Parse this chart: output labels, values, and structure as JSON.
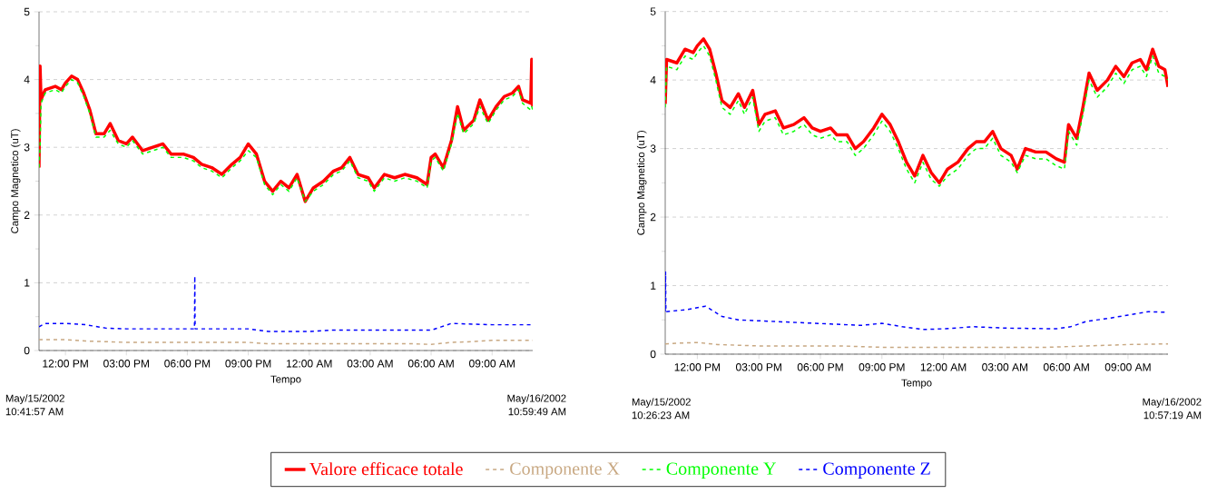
{
  "chart_data": [
    {
      "type": "line",
      "xlabel": "Tempo",
      "ylabel": "Campo Magnetico  (uT)",
      "annotations": [
        "May/15/2002",
        "10:41:57 AM",
        "May/16/2002",
        "10:59:49 AM"
      ],
      "xlim": [
        "2002-05-15T10:42",
        "2002-05-16T11:00"
      ],
      "ylim": [
        0,
        5
      ],
      "xticks": [
        {
          "value": "2002-05-15T12:00",
          "label": "12:00 PM"
        },
        {
          "value": "2002-05-15T15:00",
          "label": "03:00 PM"
        },
        {
          "value": "2002-05-15T18:00",
          "label": "06:00 PM"
        },
        {
          "value": "2002-05-15T21:00",
          "label": "09:00 PM"
        },
        {
          "value": "2002-05-16T00:00",
          "label": "12:00 AM"
        },
        {
          "value": "2002-05-16T03:00",
          "label": "03:00 AM"
        },
        {
          "value": "2002-05-16T06:00",
          "label": "06:00 AM"
        },
        {
          "value": "2002-05-16T09:00",
          "label": "09:00 AM"
        }
      ],
      "yticks": [
        0,
        1,
        2,
        3,
        4,
        5
      ],
      "grid": "y",
      "legend": "bottom",
      "marker": "none",
      "x": [
        "2002-05-15T10:42",
        "2002-05-15T10:45",
        "2002-05-15T10:48",
        "2002-05-15T11:00",
        "2002-05-15T11:30",
        "2002-05-15T11:48",
        "2002-05-15T12:00",
        "2002-05-15T12:18",
        "2002-05-15T12:36",
        "2002-05-15T12:54",
        "2002-05-15T13:12",
        "2002-05-15T13:30",
        "2002-05-15T13:54",
        "2002-05-15T14:12",
        "2002-05-15T14:36",
        "2002-05-15T15:00",
        "2002-05-15T15:18",
        "2002-05-15T15:48",
        "2002-05-15T16:18",
        "2002-05-15T16:48",
        "2002-05-15T17:12",
        "2002-05-15T17:48",
        "2002-05-15T18:18",
        "2002-05-15T18:42",
        "2002-05-15T19:12",
        "2002-05-15T19:42",
        "2002-05-15T20:12",
        "2002-05-15T20:36",
        "2002-05-15T21:00",
        "2002-05-15T21:24",
        "2002-05-15T21:48",
        "2002-05-15T22:12",
        "2002-05-15T22:36",
        "2002-05-15T23:00",
        "2002-05-15T23:24",
        "2002-05-15T23:48",
        "2002-05-16T00:12",
        "2002-05-16T00:42",
        "2002-05-16T01:12",
        "2002-05-16T01:36",
        "2002-05-16T02:00",
        "2002-05-16T02:24",
        "2002-05-16T02:54",
        "2002-05-16T03:12",
        "2002-05-16T03:42",
        "2002-05-16T04:12",
        "2002-05-16T04:42",
        "2002-05-16T05:18",
        "2002-05-16T05:48",
        "2002-05-16T06:00",
        "2002-05-16T06:12",
        "2002-05-16T06:36",
        "2002-05-16T07:00",
        "2002-05-16T07:18",
        "2002-05-16T07:36",
        "2002-05-16T08:06",
        "2002-05-16T08:24",
        "2002-05-16T08:48",
        "2002-05-16T09:12",
        "2002-05-16T09:36",
        "2002-05-16T10:00",
        "2002-05-16T10:18",
        "2002-05-16T10:30",
        "2002-05-16T10:54",
        "2002-05-16T10:57",
        "2002-05-16T11:00"
      ],
      "series": [
        {
          "name": "Valore efficace totale",
          "color": "#ff0000",
          "line_style": "solid",
          "values": [
            2.7,
            4.2,
            3.7,
            3.85,
            3.9,
            3.85,
            3.95,
            4.05,
            4.0,
            3.8,
            3.55,
            3.2,
            3.2,
            3.35,
            3.1,
            3.05,
            3.15,
            2.95,
            3.0,
            3.05,
            2.9,
            2.9,
            2.85,
            2.75,
            2.7,
            2.6,
            2.75,
            2.85,
            3.05,
            2.9,
            2.5,
            2.35,
            2.5,
            2.4,
            2.6,
            2.2,
            2.4,
            2.5,
            2.65,
            2.7,
            2.85,
            2.6,
            2.55,
            2.4,
            2.6,
            2.55,
            2.6,
            2.55,
            2.45,
            2.85,
            2.9,
            2.7,
            3.1,
            3.6,
            3.25,
            3.4,
            3.7,
            3.4,
            3.6,
            3.75,
            3.8,
            3.9,
            3.7,
            3.65,
            4.3,
            3.6
          ]
        },
        {
          "name": "Componente X",
          "color": "#c8a882",
          "line_style": "dashed",
          "x": [
            "2002-05-15T10:42",
            "2002-05-15T12:00",
            "2002-05-15T13:00",
            "2002-05-15T15:00",
            "2002-05-15T18:00",
            "2002-05-15T21:00",
            "2002-05-15T22:00",
            "2002-05-16T01:00",
            "2002-05-16T05:00",
            "2002-05-16T06:00",
            "2002-05-16T07:00",
            "2002-05-16T08:00",
            "2002-05-16T09:00",
            "2002-05-16T11:00"
          ],
          "values": [
            0.16,
            0.16,
            0.14,
            0.12,
            0.12,
            0.12,
            0.1,
            0.1,
            0.1,
            0.09,
            0.12,
            0.13,
            0.15,
            0.15
          ]
        },
        {
          "name": "Componente Y",
          "color": "#00ff00",
          "line_style": "dashed",
          "values": [
            2.7,
            3.0,
            3.65,
            3.8,
            3.85,
            3.8,
            3.9,
            4.0,
            3.95,
            3.75,
            3.5,
            3.15,
            3.15,
            3.25,
            3.05,
            3.0,
            3.1,
            2.9,
            2.95,
            3.0,
            2.85,
            2.85,
            2.8,
            2.7,
            2.65,
            2.55,
            2.7,
            2.8,
            2.95,
            2.85,
            2.45,
            2.3,
            2.45,
            2.35,
            2.55,
            2.2,
            2.35,
            2.45,
            2.6,
            2.65,
            2.8,
            2.55,
            2.5,
            2.35,
            2.55,
            2.5,
            2.55,
            2.5,
            2.4,
            2.8,
            2.85,
            2.65,
            3.05,
            3.5,
            3.2,
            3.35,
            3.6,
            3.35,
            3.55,
            3.7,
            3.75,
            3.85,
            3.65,
            3.55,
            3.6,
            3.55
          ]
        },
        {
          "name": "Componente Z",
          "color": "#0000ff",
          "line_style": "dashed",
          "x": [
            "2002-05-15T10:42",
            "2002-05-15T11:00",
            "2002-05-15T12:00",
            "2002-05-15T13:00",
            "2002-05-15T14:00",
            "2002-05-15T15:00",
            "2002-05-15T18:00",
            "2002-05-15T18:21",
            "2002-05-15T18:22",
            "2002-05-15T18:23",
            "2002-05-15T21:00",
            "2002-05-15T22:00",
            "2002-05-16T00:00",
            "2002-05-16T01:00",
            "2002-05-16T06:00",
            "2002-05-16T06:30",
            "2002-05-16T07:00",
            "2002-05-16T09:00",
            "2002-05-16T11:00"
          ],
          "values": [
            0.35,
            0.4,
            0.4,
            0.38,
            0.33,
            0.32,
            0.32,
            0.32,
            1.1,
            0.32,
            0.32,
            0.28,
            0.28,
            0.3,
            0.3,
            0.35,
            0.4,
            0.38,
            0.38
          ]
        }
      ]
    },
    {
      "type": "line",
      "xlabel": "Tempo",
      "ylabel": "Campo Magnetico  (uT)",
      "annotations": [
        "May/15/2002",
        "10:26:23 AM",
        "May/16/2002",
        "10:57:19 AM"
      ],
      "xlim": [
        "2002-05-15T10:26",
        "2002-05-16T10:57"
      ],
      "ylim": [
        0,
        5
      ],
      "xticks": [
        {
          "value": "2002-05-15T12:00",
          "label": "12:00 PM"
        },
        {
          "value": "2002-05-15T15:00",
          "label": "03:00 PM"
        },
        {
          "value": "2002-05-15T18:00",
          "label": "06:00 PM"
        },
        {
          "value": "2002-05-15T21:00",
          "label": "09:00 PM"
        },
        {
          "value": "2002-05-16T00:00",
          "label": "12:00 AM"
        },
        {
          "value": "2002-05-16T03:00",
          "label": "03:00 AM"
        },
        {
          "value": "2002-05-16T06:00",
          "label": "06:00 AM"
        },
        {
          "value": "2002-05-16T09:00",
          "label": "09:00 AM"
        }
      ],
      "yticks": [
        0,
        1,
        2,
        3,
        4,
        5
      ],
      "grid": "y",
      "marker": "none",
      "x": [
        "2002-05-15T10:26",
        "2002-05-15T10:30",
        "2002-05-15T11:00",
        "2002-05-15T11:24",
        "2002-05-15T11:48",
        "2002-05-15T12:00",
        "2002-05-15T12:18",
        "2002-05-15T12:36",
        "2002-05-15T12:54",
        "2002-05-15T13:12",
        "2002-05-15T13:36",
        "2002-05-15T14:00",
        "2002-05-15T14:18",
        "2002-05-15T14:42",
        "2002-05-15T15:00",
        "2002-05-15T15:18",
        "2002-05-15T15:48",
        "2002-05-15T16:12",
        "2002-05-15T16:42",
        "2002-05-15T17:12",
        "2002-05-15T17:36",
        "2002-05-15T18:00",
        "2002-05-15T18:30",
        "2002-05-15T18:48",
        "2002-05-15T19:18",
        "2002-05-15T19:42",
        "2002-05-15T20:06",
        "2002-05-15T20:36",
        "2002-05-15T21:00",
        "2002-05-15T21:24",
        "2002-05-15T21:48",
        "2002-05-15T22:12",
        "2002-05-15T22:36",
        "2002-05-15T23:00",
        "2002-05-15T23:24",
        "2002-05-15T23:48",
        "2002-05-16T00:12",
        "2002-05-16T00:42",
        "2002-05-16T01:12",
        "2002-05-16T01:36",
        "2002-05-16T02:00",
        "2002-05-16T02:24",
        "2002-05-16T02:48",
        "2002-05-16T03:18",
        "2002-05-16T03:36",
        "2002-05-16T04:00",
        "2002-05-16T04:30",
        "2002-05-16T05:00",
        "2002-05-16T05:30",
        "2002-05-16T05:54",
        "2002-05-16T06:06",
        "2002-05-16T06:30",
        "2002-05-16T06:48",
        "2002-05-16T07:06",
        "2002-05-16T07:30",
        "2002-05-16T08:00",
        "2002-05-16T08:24",
        "2002-05-16T08:48",
        "2002-05-16T09:12",
        "2002-05-16T09:36",
        "2002-05-16T09:54",
        "2002-05-16T10:12",
        "2002-05-16T10:30",
        "2002-05-16T10:48",
        "2002-05-16T10:57"
      ],
      "series": [
        {
          "color": "#ff0000",
          "line_style": "solid",
          "values": [
            3.65,
            4.3,
            4.25,
            4.45,
            4.4,
            4.5,
            4.6,
            4.45,
            4.1,
            3.7,
            3.6,
            3.8,
            3.6,
            3.85,
            3.35,
            3.5,
            3.55,
            3.3,
            3.35,
            3.45,
            3.3,
            3.25,
            3.3,
            3.2,
            3.2,
            3.0,
            3.1,
            3.3,
            3.5,
            3.35,
            3.1,
            2.8,
            2.6,
            2.9,
            2.65,
            2.5,
            2.7,
            2.8,
            3.0,
            3.1,
            3.1,
            3.25,
            3.0,
            2.9,
            2.7,
            3.0,
            2.95,
            2.95,
            2.85,
            2.8,
            3.35,
            3.15,
            3.6,
            4.1,
            3.85,
            4.0,
            4.2,
            4.05,
            4.25,
            4.3,
            4.15,
            4.45,
            4.2,
            4.15,
            3.9
          ]
        },
        {
          "color": "#c8a882",
          "line_style": "dashed",
          "x": [
            "2002-05-15T10:26",
            "2002-05-15T11:00",
            "2002-05-15T12:00",
            "2002-05-15T13:00",
            "2002-05-15T15:00",
            "2002-05-15T19:00",
            "2002-05-15T21:00",
            "2002-05-16T01:00",
            "2002-05-16T05:00",
            "2002-05-16T07:00",
            "2002-05-16T09:00",
            "2002-05-16T10:57"
          ],
          "values": [
            0.15,
            0.16,
            0.17,
            0.14,
            0.12,
            0.12,
            0.1,
            0.1,
            0.1,
            0.12,
            0.14,
            0.15
          ]
        },
        {
          "color": "#00ff00",
          "line_style": "dashed",
          "values": [
            3.6,
            4.2,
            4.15,
            4.35,
            4.3,
            4.4,
            4.5,
            4.35,
            4.0,
            3.6,
            3.5,
            3.7,
            3.5,
            3.75,
            3.25,
            3.4,
            3.45,
            3.2,
            3.25,
            3.35,
            3.2,
            3.15,
            3.2,
            3.1,
            3.1,
            2.9,
            3.0,
            3.2,
            3.4,
            3.25,
            3.0,
            2.7,
            2.5,
            2.8,
            2.55,
            2.45,
            2.6,
            2.7,
            2.9,
            3.0,
            3.0,
            3.15,
            2.9,
            2.8,
            2.65,
            2.9,
            2.85,
            2.85,
            2.75,
            2.7,
            3.25,
            3.05,
            3.5,
            4.0,
            3.75,
            3.9,
            4.1,
            3.95,
            4.15,
            4.2,
            4.05,
            4.35,
            4.1,
            4.05,
            4.0
          ]
        },
        {
          "color": "#0000ff",
          "line_style": "dashed",
          "x": [
            "2002-05-15T10:26",
            "2002-05-15T10:27",
            "2002-05-15T10:28",
            "2002-05-15T11:30",
            "2002-05-15T12:24",
            "2002-05-15T13:12",
            "2002-05-15T14:00",
            "2002-05-15T15:30",
            "2002-05-15T17:00",
            "2002-05-15T18:30",
            "2002-05-15T20:00",
            "2002-05-15T21:00",
            "2002-05-15T22:00",
            "2002-05-15T23:00",
            "2002-05-16T00:00",
            "2002-05-16T01:30",
            "2002-05-16T03:00",
            "2002-05-16T05:30",
            "2002-05-16T06:12",
            "2002-05-16T07:00",
            "2002-05-16T08:00",
            "2002-05-16T09:00",
            "2002-05-16T10:00",
            "2002-05-16T10:57"
          ],
          "values": [
            0.62,
            1.2,
            0.62,
            0.65,
            0.7,
            0.55,
            0.5,
            0.48,
            0.46,
            0.44,
            0.42,
            0.45,
            0.4,
            0.36,
            0.37,
            0.4,
            0.38,
            0.37,
            0.4,
            0.48,
            0.52,
            0.57,
            0.62,
            0.61
          ]
        }
      ]
    }
  ]
}
